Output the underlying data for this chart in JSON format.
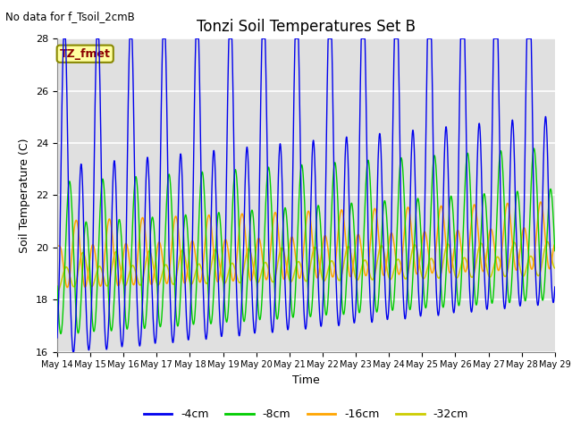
{
  "title": "Tonzi Soil Temperatures Set B",
  "no_data_text": "No data for f_Tsoil_2cmB",
  "annotation_text": "TZ_fmet",
  "xlabel": "Time",
  "ylabel": "Soil Temperature (C)",
  "ylim": [
    16,
    28
  ],
  "yticks": [
    16,
    18,
    20,
    22,
    24,
    26,
    28
  ],
  "xtick_labels": [
    "May 14",
    "May 15",
    "May 16",
    "May 17",
    "May 18",
    "May 19",
    "May 20",
    "May 21",
    "May 22",
    "May 23",
    "May 24",
    "May 25",
    "May 26",
    "May 27",
    "May 28",
    "May 29"
  ],
  "colors": {
    "blue": "#0000EE",
    "green": "#00CC00",
    "orange": "#FFA500",
    "yellow": "#CCCC00",
    "background": "#E0E0E0"
  },
  "legend_entries": [
    "-4cm",
    "-8cm",
    "-16cm",
    "-32cm"
  ],
  "legend_colors": [
    "#0000EE",
    "#00CC00",
    "#FFA500",
    "#CCCC00"
  ]
}
